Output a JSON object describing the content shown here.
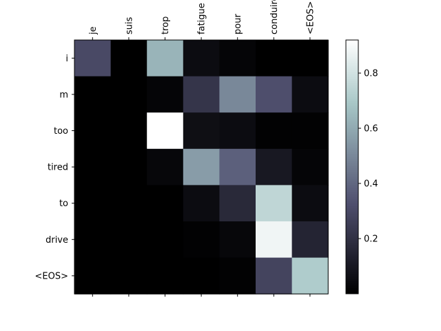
{
  "chart_data": {
    "type": "heatmap",
    "title": "",
    "xlabel": "",
    "ylabel": "",
    "x_categories": [
      "je",
      "suis",
      "trop",
      "fatigue",
      "pour",
      "conduire",
      "<EOS>"
    ],
    "y_categories": [
      "i",
      "m",
      "too",
      "tired",
      "to",
      "drive",
      "<EOS>"
    ],
    "values": [
      [
        0.3,
        0.0,
        0.63,
        0.05,
        0.02,
        0.0,
        0.0
      ],
      [
        0.0,
        0.0,
        0.02,
        0.22,
        0.5,
        0.32,
        0.05
      ],
      [
        0.0,
        0.0,
        0.92,
        0.06,
        0.05,
        0.01,
        0.01
      ],
      [
        0.0,
        0.0,
        0.03,
        0.56,
        0.38,
        0.1,
        0.02
      ],
      [
        0.0,
        0.0,
        0.0,
        0.05,
        0.17,
        0.75,
        0.05
      ],
      [
        0.0,
        0.0,
        0.0,
        0.01,
        0.03,
        0.88,
        0.15
      ],
      [
        0.0,
        0.0,
        0.0,
        0.0,
        0.01,
        0.28,
        0.71
      ]
    ],
    "colormap": "bone",
    "colorbar": {
      "min": 0.0,
      "max": 0.92,
      "ticks": [
        0.2,
        0.4,
        0.6,
        0.8
      ],
      "tick_labels": [
        "0.2",
        "0.4",
        "0.6",
        "0.8"
      ]
    },
    "x_tick_position": "top",
    "x_tick_rotation": 90,
    "grid": false
  }
}
